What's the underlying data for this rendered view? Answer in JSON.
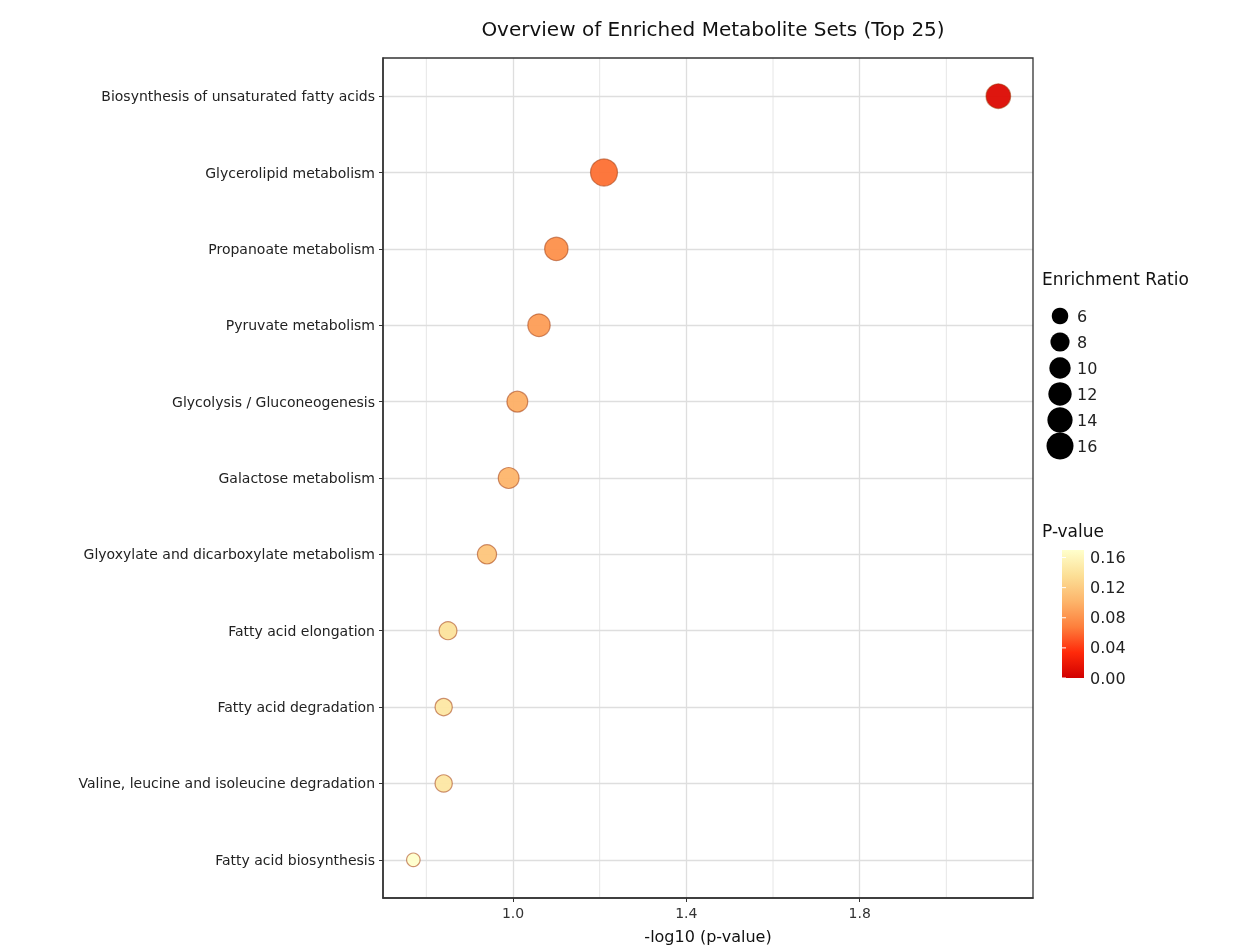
{
  "chart_data": {
    "type": "bubble",
    "title": "Overview of Enriched Metabolite Sets (Top 25)",
    "xlabel": "-log10 (p-value)",
    "legend_title": "Enrichment Ratio",
    "clabel": "P-value",
    "categories": [
      "Biosynthesis of unsaturated fatty acids",
      "Glycerolipid metabolism",
      "Propanoate metabolism",
      "Pyruvate metabolism",
      "Glycolysis / Gluconeogenesis",
      "Galactose metabolism",
      "Glyoxylate and dicarboxylate metabolism",
      "Fatty acid elongation",
      "Fatty acid degradation",
      "Valine, leucine and isoleucine degradation",
      "Fatty acid biosynthesis"
    ],
    "values": [
      2.12,
      1.21,
      1.1,
      1.06,
      1.01,
      0.99,
      0.94,
      0.85,
      0.84,
      0.84,
      0.77
    ],
    "sizes": [
      13.3,
      16,
      12,
      11,
      9.5,
      9.5,
      8,
      7,
      6.5,
      6.5,
      4
    ],
    "cvalues": [
      0.008,
      0.062,
      0.079,
      0.087,
      0.098,
      0.102,
      0.115,
      0.14,
      0.144,
      0.144,
      0.17
    ],
    "size_legend": [
      6,
      8,
      10,
      12,
      14,
      16
    ],
    "clim": [
      0,
      0.17
    ],
    "cticks": [
      {
        "value": 0,
        "label": "0.00"
      },
      0.04,
      0.08,
      0.12,
      0.16
    ],
    "xlim": [
      0.7,
      2.2
    ],
    "xticks": [
      {
        "value": 0.8,
        "label": null
      },
      {
        "value": 1,
        "label": "1.0"
      },
      {
        "value": 1.2,
        "label": null
      },
      {
        "value": 1.4,
        "label": "1.4"
      },
      {
        "value": 1.6,
        "label": null
      },
      {
        "value": 1.8,
        "label": "1.8"
      },
      {
        "value": 2,
        "label": null
      }
    ],
    "grid": true,
    "marker": "circle",
    "orientation": "horizontal"
  }
}
